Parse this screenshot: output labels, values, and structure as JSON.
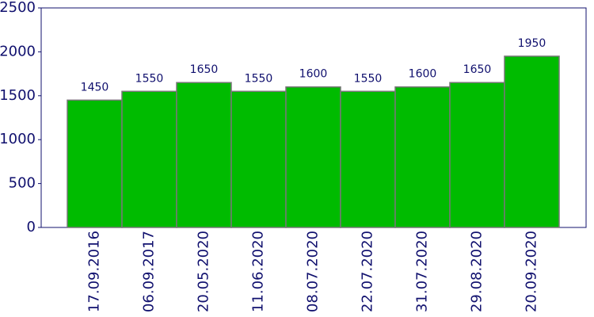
{
  "chart_data": {
    "type": "bar",
    "categories": [
      "17.09.2016",
      "06.09.2017",
      "20.05.2020",
      "11.06.2020",
      "08.07.2020",
      "22.07.2020",
      "31.07.2020",
      "29.08.2020",
      "20.09.2020"
    ],
    "values": [
      1450,
      1550,
      1650,
      1550,
      1600,
      1550,
      1600,
      1650,
      1950
    ],
    "color": "#00bb00",
    "ylim": [
      0,
      2500
    ],
    "yticks": [
      0,
      500,
      1000,
      1500,
      2000,
      2500
    ],
    "grid": false
  }
}
